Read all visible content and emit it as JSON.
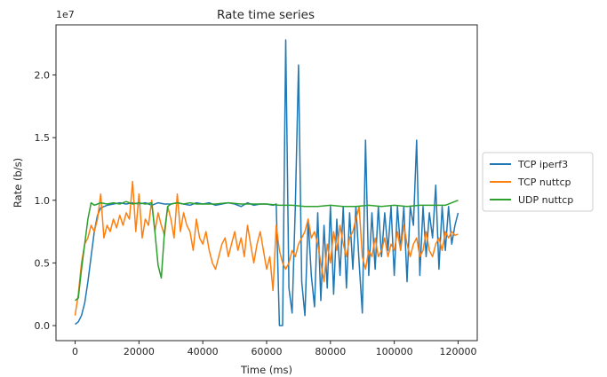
{
  "chart_data": {
    "type": "line",
    "title": "Rate time series",
    "xlabel": "Time (ms)",
    "ylabel": "Rate (b/s)",
    "y_offset_text": "1e7",
    "xlim": [
      -6000,
      126000
    ],
    "ylim": [
      -1200000,
      24000000
    ],
    "x_ticks": [
      0,
      20000,
      40000,
      60000,
      80000,
      100000,
      120000
    ],
    "x_tick_labels": [
      "0",
      "20000",
      "40000",
      "60000",
      "80000",
      "100000",
      "120000"
    ],
    "y_ticks": [
      0,
      5000000,
      10000000,
      15000000,
      20000000
    ],
    "y_tick_labels": [
      "0.0",
      "0.5",
      "1.0",
      "1.5",
      "2.0"
    ],
    "grid": false,
    "legend_placement": "outside-right",
    "series": [
      {
        "name": "TCP iperf3",
        "color": "#1f77b4",
        "x": [
          0,
          1000,
          2000,
          3000,
          4000,
          5000,
          6000,
          7000,
          8000,
          10000,
          12000,
          14000,
          16000,
          18000,
          20000,
          22000,
          24000,
          26000,
          28000,
          30000,
          32000,
          34000,
          36000,
          38000,
          40000,
          42000,
          44000,
          46000,
          48000,
          50000,
          52000,
          54000,
          56000,
          58000,
          60000,
          62000,
          63000,
          64000,
          65000,
          66000,
          67000,
          68000,
          69000,
          70000,
          71000,
          72000,
          73000,
          74000,
          75000,
          76000,
          77000,
          78000,
          79000,
          80000,
          81000,
          82000,
          83000,
          84000,
          85000,
          86000,
          87000,
          88000,
          89000,
          90000,
          91000,
          92000,
          93000,
          94000,
          95000,
          96000,
          97000,
          98000,
          99000,
          100000,
          101000,
          102000,
          103000,
          104000,
          105000,
          106000,
          107000,
          108000,
          109000,
          110000,
          111000,
          112000,
          113000,
          114000,
          115000,
          116000,
          117000,
          118000,
          119000,
          120000
        ],
        "y": [
          100000,
          300000,
          800000,
          1800000,
          3500000,
          5500000,
          7500000,
          8800000,
          9400000,
          9600000,
          9700000,
          9800000,
          9700000,
          9800000,
          9700000,
          9800000,
          9600000,
          9800000,
          9700000,
          9700000,
          9800000,
          9700000,
          9600000,
          9800000,
          9700000,
          9800000,
          9600000,
          9700000,
          9800000,
          9700000,
          9500000,
          9800000,
          9600000,
          9700000,
          9700000,
          9600000,
          9700000,
          0,
          0,
          22800000,
          3000000,
          1000000,
          9500000,
          20800000,
          3500000,
          800000,
          8500000,
          4000000,
          1500000,
          9000000,
          2000000,
          8000000,
          3000000,
          9500000,
          2500000,
          8500000,
          4000000,
          9500000,
          3000000,
          9000000,
          4500000,
          9500000,
          5000000,
          1000000,
          14800000,
          4000000,
          9000000,
          4500000,
          9500000,
          5500000,
          9000000,
          6000000,
          9500000,
          4000000,
          9500000,
          6000000,
          9500000,
          3500000,
          9500000,
          8000000,
          14800000,
          4000000,
          9500000,
          5500000,
          9000000,
          7000000,
          11200000,
          4500000,
          9500000,
          6000000,
          9500000,
          6500000,
          8000000,
          9000000
        ],
        "marker": "none"
      },
      {
        "name": "TCP nuttcp",
        "color": "#ff7f0e",
        "x": [
          0,
          1000,
          2000,
          3000,
          4000,
          5000,
          6000,
          7000,
          8000,
          9000,
          10000,
          11000,
          12000,
          13000,
          14000,
          15000,
          16000,
          17000,
          18000,
          19000,
          20000,
          21000,
          22000,
          23000,
          24000,
          25000,
          26000,
          27000,
          28000,
          29000,
          30000,
          31000,
          32000,
          33000,
          34000,
          35000,
          36000,
          37000,
          38000,
          39000,
          40000,
          41000,
          42000,
          43000,
          44000,
          45000,
          46000,
          47000,
          48000,
          49000,
          50000,
          51000,
          52000,
          53000,
          54000,
          55000,
          56000,
          57000,
          58000,
          59000,
          60000,
          61000,
          62000,
          63000,
          64000,
          65000,
          66000,
          67000,
          68000,
          69000,
          70000,
          71000,
          72000,
          73000,
          74000,
          75000,
          76000,
          77000,
          78000,
          79000,
          80000,
          81000,
          82000,
          83000,
          84000,
          85000,
          86000,
          87000,
          88000,
          89000,
          90000,
          91000,
          92000,
          93000,
          94000,
          95000,
          96000,
          97000,
          98000,
          99000,
          100000,
          101000,
          102000,
          103000,
          104000,
          105000,
          106000,
          107000,
          108000,
          109000,
          110000,
          111000,
          112000,
          113000,
          114000,
          115000,
          116000,
          117000,
          118000,
          119000,
          120000
        ],
        "y": [
          800000,
          2500000,
          5000000,
          6500000,
          7000000,
          8000000,
          7500000,
          8500000,
          10500000,
          7000000,
          8000000,
          7500000,
          8500000,
          7800000,
          8800000,
          8000000,
          9000000,
          8500000,
          11500000,
          7500000,
          10500000,
          7000000,
          8500000,
          8000000,
          10000000,
          7500000,
          9000000,
          8000000,
          7200000,
          9500000,
          8500000,
          7000000,
          10500000,
          7500000,
          9000000,
          8000000,
          7500000,
          6000000,
          8500000,
          7000000,
          6500000,
          7500000,
          6000000,
          5000000,
          4500000,
          5500000,
          6500000,
          7000000,
          5500000,
          6500000,
          7500000,
          6000000,
          7000000,
          5500000,
          8000000,
          6500000,
          5000000,
          6500000,
          7500000,
          6000000,
          4500000,
          5500000,
          2800000,
          8000000,
          6000000,
          5000000,
          4500000,
          5000000,
          6000000,
          5500000,
          6500000,
          7000000,
          7500000,
          8500000,
          7000000,
          7500000,
          6500000,
          5000000,
          3500000,
          6500000,
          5000000,
          7500000,
          6000000,
          8000000,
          6500000,
          5500000,
          7000000,
          7500000,
          8500000,
          9500000,
          5500000,
          4500000,
          6000000,
          5500000,
          7000000,
          5500000,
          6000000,
          7000000,
          5500000,
          6500000,
          6000000,
          7500000,
          6000000,
          8000000,
          6500000,
          5500000,
          6500000,
          7000000,
          5500000,
          6000000,
          7500000,
          6000000,
          5500000,
          6500000,
          7000000,
          6000000,
          7500000,
          7000000,
          7500000,
          7200000,
          7300000
        ],
        "marker": "none"
      },
      {
        "name": "UDP nuttcp",
        "color": "#2ca02c",
        "x": [
          0,
          1000,
          2000,
          3000,
          4000,
          5000,
          6000,
          7000,
          8000,
          10000,
          12000,
          14000,
          16000,
          18000,
          20000,
          22000,
          24000,
          25000,
          26000,
          27000,
          28000,
          29000,
          30000,
          32000,
          34000,
          36000,
          38000,
          40000,
          44000,
          48000,
          52000,
          56000,
          60000,
          64000,
          68000,
          72000,
          76000,
          80000,
          84000,
          88000,
          92000,
          96000,
          100000,
          104000,
          108000,
          112000,
          116000,
          120000
        ],
        "y": [
          2000000,
          2200000,
          4500000,
          6500000,
          8500000,
          9800000,
          9600000,
          9700000,
          9800000,
          9700000,
          9800000,
          9700000,
          9900000,
          9700000,
          9800000,
          9700000,
          9800000,
          7500000,
          4800000,
          3800000,
          7500000,
          9500000,
          9700000,
          9800000,
          9700000,
          9800000,
          9700000,
          9700000,
          9700000,
          9800000,
          9700000,
          9700000,
          9700000,
          9600000,
          9600000,
          9500000,
          9500000,
          9600000,
          9500000,
          9500000,
          9600000,
          9500000,
          9600000,
          9500000,
          9600000,
          9600000,
          9600000,
          10000000
        ],
        "marker": "none"
      }
    ]
  }
}
